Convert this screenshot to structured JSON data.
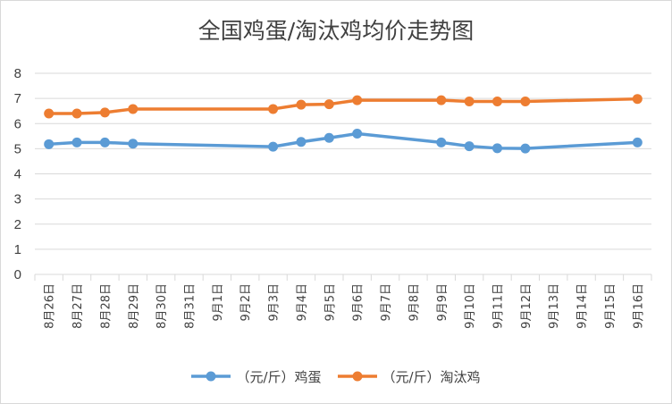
{
  "chart_data": {
    "type": "line",
    "title": "全国鸡蛋/淘汰鸡均价走势图",
    "categories": [
      "8月26日",
      "8月27日",
      "8月28日",
      "8月29日",
      "8月30日",
      "8月31日",
      "9月1日",
      "9月2日",
      "9月3日",
      "9月4日",
      "9月5日",
      "9月6日",
      "9月7日",
      "9月8日",
      "9月9日",
      "9月10日",
      "9月11日",
      "9月12日",
      "9月13日",
      "9月14日",
      "9月15日",
      "9月16日"
    ],
    "ylim": [
      0,
      8
    ],
    "yticks": [
      0,
      1,
      2,
      3,
      4,
      5,
      6,
      7,
      8
    ],
    "grid": true,
    "legend_position": "bottom",
    "series": [
      {
        "name": "（元/斤）鸡蛋",
        "color": "#5b9bd5",
        "values": [
          5.18,
          5.25,
          5.25,
          5.2,
          null,
          null,
          null,
          null,
          5.08,
          5.27,
          5.43,
          5.6,
          null,
          null,
          5.25,
          5.1,
          5.02,
          5.01,
          null,
          null,
          null,
          5.25
        ]
      },
      {
        "name": "（元/斤）淘汰鸡",
        "color": "#ed7d31",
        "values": [
          6.4,
          6.4,
          6.44,
          6.58,
          null,
          null,
          null,
          null,
          6.58,
          6.75,
          6.77,
          6.93,
          null,
          null,
          6.93,
          6.88,
          6.88,
          6.88,
          null,
          null,
          null,
          6.98
        ]
      }
    ]
  }
}
